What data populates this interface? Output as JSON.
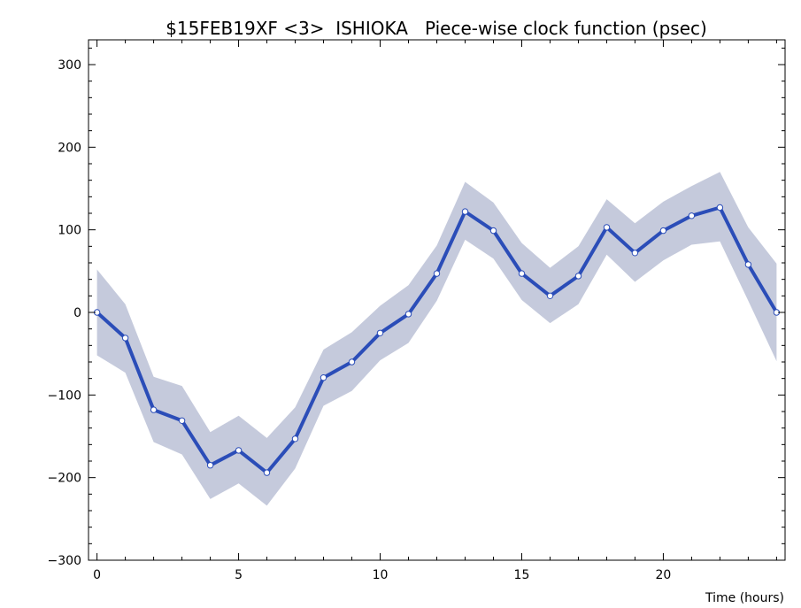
{
  "chart_data": {
    "type": "line",
    "title": "$15FEB19XF <3>  ISHIOKA   Piece-wise clock function (psec)",
    "xlabel": "Time (hours)",
    "ylabel": "",
    "xlim": [
      -0.3,
      24.3
    ],
    "ylim": [
      -300,
      330
    ],
    "x_ticks": [
      0,
      5,
      10,
      15,
      20
    ],
    "x_tick_labels": [
      "0",
      "5",
      "10",
      "15",
      "20"
    ],
    "y_ticks": [
      -300,
      -200,
      -100,
      0,
      100,
      200,
      300
    ],
    "y_tick_labels": [
      "−300",
      "−200",
      "−100",
      "0",
      "100",
      "200",
      "300"
    ],
    "grid": false,
    "series": [
      {
        "x": [
          0,
          1,
          2,
          3,
          4,
          5,
          6,
          7,
          8,
          9,
          10,
          11,
          12,
          13,
          14,
          15,
          16,
          17,
          18,
          19,
          20,
          21,
          22,
          23,
          24
        ],
        "y": [
          0,
          -31,
          -118,
          -131,
          -185,
          -167,
          -194,
          -153,
          -79,
          -60,
          -25,
          -2,
          47,
          122,
          99,
          47,
          20,
          44,
          103,
          72,
          99,
          117,
          127,
          58,
          0
        ],
        "upper": [
          52,
          10,
          -78,
          -89,
          -145,
          -125,
          -152,
          -115,
          -45,
          -24,
          8,
          33,
          81,
          158,
          133,
          84,
          54,
          80,
          137,
          108,
          134,
          153,
          170,
          103,
          59
        ],
        "lower": [
          -52,
          -73,
          -157,
          -172,
          -226,
          -207,
          -234,
          -189,
          -113,
          -95,
          -58,
          -37,
          14,
          88,
          65,
          15,
          -13,
          10,
          70,
          37,
          63,
          82,
          86,
          14,
          -59
        ],
        "color": "#2b4db8",
        "band_color": "#c5cadc",
        "marker_fill": "#ffffff"
      }
    ]
  }
}
